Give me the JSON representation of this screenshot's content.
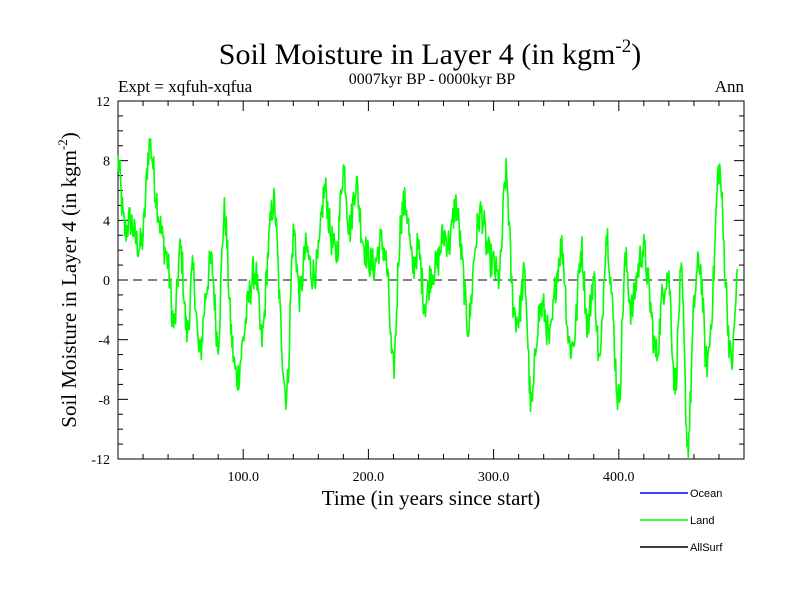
{
  "chart_data": {
    "type": "line",
    "title": {
      "main": "Soil Moisture in Layer 4 (in kgm",
      "sup": "-2",
      "close": ")"
    },
    "subtitle_left": "Expt = xqfuh-xqfua",
    "subtitle_center": "0007kyr BP - 0000kyr BP",
    "subtitle_right": "Ann",
    "xlabel": "Time (in years since start)",
    "ylabel": {
      "main": "Soil Moisture in Layer 4 (in kgm",
      "sup": "-2",
      "close": ")"
    },
    "xlim": [
      0,
      500
    ],
    "ylim": [
      -12,
      12
    ],
    "xticks": [
      100,
      200,
      300,
      400
    ],
    "xtick_labels": [
      "100.0",
      "200.0",
      "300.0",
      "400.0"
    ],
    "yticks": [
      -12,
      -8,
      -4,
      0,
      4,
      8,
      12
    ],
    "ytick_labels": [
      "-12",
      "-8",
      "-4",
      "0",
      "4",
      "8",
      "12"
    ],
    "zero_line": true,
    "legend": [
      {
        "name": "Ocean",
        "color": "#0000ff"
      },
      {
        "name": "Land",
        "color": "#00ff00"
      },
      {
        "name": "AllSurf",
        "color": "#000000"
      }
    ],
    "series": [
      {
        "name": "Land",
        "color": "#00ff00",
        "x_start": 0,
        "x_step": 5,
        "values": [
          8.0,
          3.5,
          4.0,
          2.5,
          3.0,
          9.0,
          6.0,
          3.0,
          1.0,
          -3.0,
          2.0,
          -3.5,
          0.5,
          -5.0,
          -1.0,
          1.0,
          -4.0,
          4.5,
          -3.0,
          -6.5,
          -4.0,
          -1.0,
          0.5,
          -4.0,
          2.0,
          5.0,
          -3.0,
          -7.5,
          3.0,
          -1.0,
          2.0,
          0.5,
          1.5,
          6.0,
          3.0,
          2.0,
          7.5,
          3.5,
          6.5,
          3.0,
          1.5,
          1.0,
          2.5,
          0.5,
          -6.0,
          3.0,
          5.0,
          1.0,
          2.0,
          -1.5,
          0.5,
          1.0,
          3.0,
          2.5,
          5.0,
          1.0,
          -3.0,
          2.0,
          4.5,
          2.0,
          1.0,
          0.5,
          7.0,
          -1.0,
          -2.5,
          0.0,
          -8.5,
          -3.0,
          -2.0,
          -4.0,
          0.0,
          2.0,
          -4.0,
          -3.5,
          2.0,
          -3.0,
          0.0,
          -5.5,
          3.0,
          -2.0,
          -8.0,
          1.0,
          -2.0,
          0.5,
          2.0,
          -1.5,
          -5.0,
          -1.0,
          0.0,
          -7.0,
          0.0,
          -11.0,
          -2.0,
          1.0,
          -5.5,
          -1.0,
          7.5,
          0.5,
          -5.5,
          0.5
        ]
      }
    ]
  }
}
